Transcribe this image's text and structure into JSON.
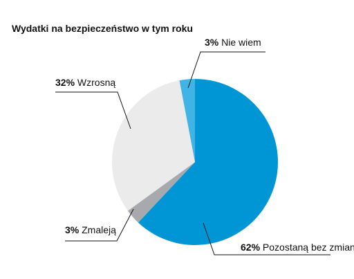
{
  "chart_data": {
    "type": "pie",
    "title": "Wydatki na bezpieczeństwo w tym roku",
    "slices": [
      {
        "label": "Pozostaną bez zmian",
        "value": 62,
        "value_label": "62%",
        "color": "#0096D6"
      },
      {
        "label": "Zmaleją",
        "value": 3,
        "value_label": "3%",
        "color": "#A7A9AC"
      },
      {
        "label": "Wzrosną",
        "value": 32,
        "value_label": "32%",
        "color": "#EBEBEB"
      },
      {
        "label": "Nie wiem",
        "value": 3,
        "value_label": "3%",
        "color": "#3FB4E5"
      }
    ],
    "start_angle_deg": 0,
    "direction": "clockwise",
    "legend": "none (leader-line labels)"
  }
}
